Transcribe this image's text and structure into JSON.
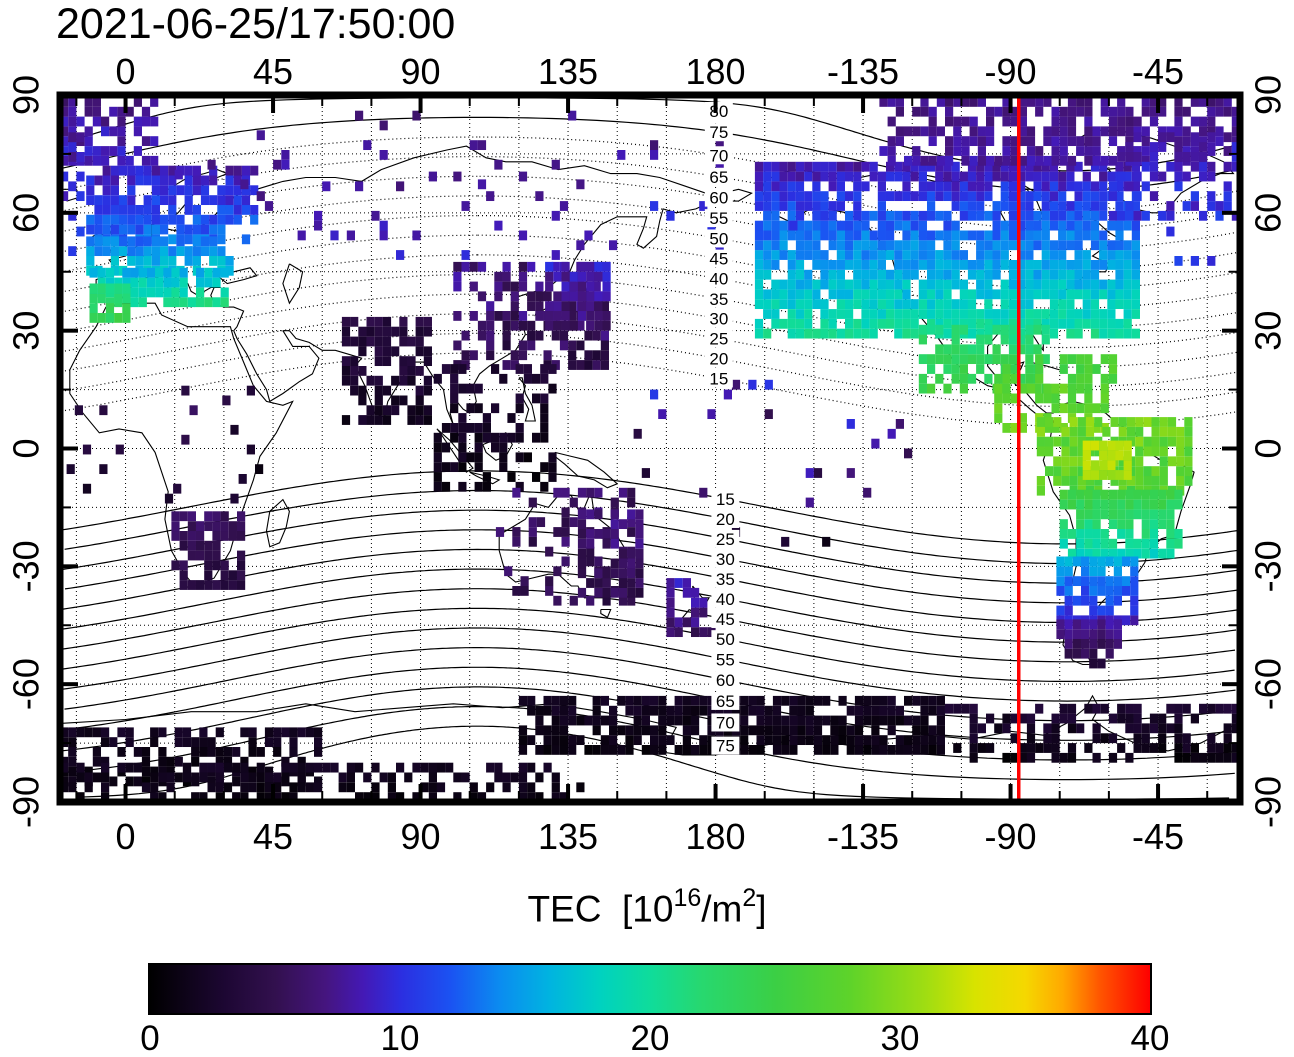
{
  "chart_data": {
    "type": "heatmap",
    "title": "2021-06-25/17:50:00",
    "background_color": "#ffffff",
    "lon_range": [
      -20,
      340
    ],
    "lat_range": [
      -90,
      90
    ],
    "grid_step_deg": 15,
    "pixel_size_deg": 2.5,
    "red_meridian_lon": -87.5,
    "red_meridian_color": "#ff0000",
    "x_axis": {
      "tick_labels": [
        "0",
        "45",
        "90",
        "135",
        "180",
        "-135",
        "-90",
        "-45"
      ],
      "tick_lons": [
        0,
        45,
        90,
        135,
        180,
        -135,
        -90,
        -45
      ]
    },
    "y_axis": {
      "tick_labels": [
        "90",
        "60",
        "30",
        "0",
        "-30",
        "-60",
        "-90"
      ],
      "tick_lats": [
        90,
        60,
        30,
        0,
        -30,
        -60,
        -90
      ]
    },
    "contours": {
      "label_meridian_lon": 181,
      "levels_north": [
        15,
        20,
        25,
        30,
        35,
        40,
        45,
        50,
        55,
        60,
        65,
        70,
        75,
        80
      ],
      "labels_north": [
        "15",
        "20",
        "25",
        "30",
        "35",
        "40",
        "45",
        "50",
        "55",
        "60",
        "65",
        "70",
        "75",
        "80"
      ],
      "levels_south": [
        -15,
        -20,
        -25,
        -30,
        -35,
        -40,
        -45,
        -50,
        -55,
        -60,
        -65,
        -70,
        -75,
        -80
      ],
      "labels_south": [
        "15",
        "20",
        "25",
        "30",
        "35",
        "40",
        "45",
        "50",
        "55",
        "60",
        "65",
        "70",
        "75",
        ""
      ]
    },
    "colorbar": {
      "title_parts": {
        "base": "TEC  [10",
        "sup1": "16",
        "mid": "/m",
        "sup2": "2",
        "end": "]"
      },
      "tick_labels": [
        "0",
        "10",
        "20",
        "30",
        "40"
      ],
      "tick_values": [
        0,
        10,
        20,
        30,
        40
      ],
      "range": [
        0,
        40
      ],
      "stops": [
        [
          0,
          "#000000"
        ],
        [
          3,
          "#1d0733"
        ],
        [
          5,
          "#32104e"
        ],
        [
          7,
          "#45157e"
        ],
        [
          8.5,
          "#4419b5"
        ],
        [
          10,
          "#2c2ee0"
        ],
        [
          12,
          "#1b52f2"
        ],
        [
          14,
          "#0b8cf0"
        ],
        [
          16,
          "#00b4e0"
        ],
        [
          18,
          "#00d2c0"
        ],
        [
          20,
          "#0fdc9b"
        ],
        [
          22,
          "#27d870"
        ],
        [
          25,
          "#3bcf45"
        ],
        [
          28,
          "#5ed32a"
        ],
        [
          31,
          "#9fdd12"
        ],
        [
          33,
          "#d8e300"
        ],
        [
          35,
          "#f5d800"
        ],
        [
          36.5,
          "#ffa800"
        ],
        [
          38,
          "#ff5500"
        ],
        [
          40,
          "#fe0000"
        ]
      ]
    },
    "tec_regions": [
      {
        "name": "arctic-atlantic",
        "lon": [
          -20,
          10
        ],
        "lat": [
          72,
          88
        ],
        "density": 0.7,
        "tec": [
          9,
          7
        ],
        "jitter": 1.5
      },
      {
        "name": "nw-europe",
        "lon": [
          -12,
          40
        ],
        "lat": [
          52,
          72
        ],
        "density": 0.8,
        "tec": [
          13,
          8
        ],
        "jitter": 1.5
      },
      {
        "name": "central-europe",
        "lon": [
          -12,
          32
        ],
        "lat": [
          44,
          52
        ],
        "density": 0.85,
        "tec": [
          17,
          13
        ],
        "jitter": 1.5
      },
      {
        "name": "south-europe",
        "lon": [
          -11,
          30
        ],
        "lat": [
          36,
          44
        ],
        "density": 0.85,
        "tec": [
          21,
          16
        ],
        "jitter": 1.5
      },
      {
        "name": "iberia-morocco",
        "lon": [
          -11,
          0
        ],
        "lat": [
          32,
          42
        ],
        "density": 0.9,
        "tec": [
          24,
          20
        ],
        "jitter": 1.5
      },
      {
        "name": "russia-scatter",
        "lon": [
          40,
          150
        ],
        "lat": [
          48,
          70
        ],
        "density": 0.09,
        "tec": [
          9,
          7
        ],
        "jitter": 1
      },
      {
        "name": "east-asia",
        "lon": [
          100,
          147
        ],
        "lat": [
          20,
          47
        ],
        "density": 0.5,
        "tec": [
          5,
          7
        ],
        "jitter": 2
      },
      {
        "name": "japan",
        "lon": [
          128,
          146
        ],
        "lat": [
          30,
          46
        ],
        "density": 0.9,
        "tec": [
          6,
          9
        ],
        "jitter": 1.5
      },
      {
        "name": "india",
        "lon": [
          66,
          92
        ],
        "lat": [
          6,
          32
        ],
        "density": 0.65,
        "tec": [
          2,
          4
        ],
        "jitter": 1
      },
      {
        "name": "se-asia",
        "lon": [
          94,
          130
        ],
        "lat": [
          -11,
          20
        ],
        "density": 0.45,
        "tec": [
          1,
          3
        ],
        "jitter": 1
      },
      {
        "name": "south-africa",
        "lon": [
          14,
          36
        ],
        "lat": [
          -36,
          -16
        ],
        "density": 0.7,
        "tec": [
          4,
          6
        ],
        "jitter": 1
      },
      {
        "name": "africa-eq-scatter",
        "lon": [
          -18,
          44
        ],
        "lat": [
          -14,
          16
        ],
        "density": 0.05,
        "tec": [
          2,
          5
        ],
        "jitter": 2
      },
      {
        "name": "australia",
        "lon": [
          113,
          155
        ],
        "lat": [
          -40,
          -11
        ],
        "density": 0.35,
        "tec": [
          5,
          6
        ],
        "jitter": 1.5
      },
      {
        "name": "australia-east",
        "lon": [
          138,
          156
        ],
        "lat": [
          -38,
          -16
        ],
        "density": 0.75,
        "tec": [
          5,
          7
        ],
        "jitter": 1.5
      },
      {
        "name": "new-zealand",
        "lon": [
          165,
          179
        ],
        "lat": [
          -48,
          -33
        ],
        "density": 0.5,
        "tec": [
          6,
          9
        ],
        "jitter": 1.5
      },
      {
        "name": "pacific-scatter",
        "lon": [
          150,
          240
        ],
        "lat": [
          -25,
          20
        ],
        "density": 0.035,
        "tec": [
          4,
          9
        ],
        "jitter": 3
      },
      {
        "name": "north-america",
        "lon": [
          -168,
          -52
        ],
        "lat": [
          28,
          72
        ],
        "density": 0.85,
        "tec": [
          20,
          8
        ],
        "jitter": 1.5
      },
      {
        "name": "arctic-canada",
        "lon": [
          -130,
          -20
        ],
        "lat": [
          72,
          88
        ],
        "density": 0.65,
        "tec": [
          8,
          7
        ],
        "jitter": 1
      },
      {
        "name": "mexico",
        "lon": [
          -118,
          -80
        ],
        "lat": [
          14,
          30
        ],
        "density": 0.7,
        "tec": [
          25,
          21
        ],
        "jitter": 1.5
      },
      {
        "name": "caribbean",
        "lon": [
          -95,
          -58
        ],
        "lat": [
          4,
          22
        ],
        "density": 0.55,
        "tec": [
          29,
          26
        ],
        "jitter": 1.5
      },
      {
        "name": "south-america-north",
        "lon": [
          -82,
          -36
        ],
        "lat": [
          -12,
          8
        ],
        "density": 0.8,
        "tec": [
          27,
          29
        ],
        "jitter": 2
      },
      {
        "name": "amazon-peak",
        "lon": [
          -68,
          -54
        ],
        "lat": [
          -8,
          2
        ],
        "density": 0.85,
        "tec": [
          31,
          33
        ],
        "jitter": 1
      },
      {
        "name": "south-america-mid",
        "lon": [
          -75,
          -38
        ],
        "lat": [
          -28,
          -12
        ],
        "density": 0.85,
        "tec": [
          19,
          25
        ],
        "jitter": 1.5
      },
      {
        "name": "south-america-south",
        "lon": [
          -76,
          -52
        ],
        "lat": [
          -45,
          -28
        ],
        "density": 0.85,
        "tec": [
          9,
          16
        ],
        "jitter": 1.5
      },
      {
        "name": "patagonia",
        "lon": [
          -76,
          -58
        ],
        "lat": [
          -56,
          -45
        ],
        "density": 0.8,
        "tec": [
          4,
          8
        ],
        "jitter": 1
      },
      {
        "name": "antarctica-pacific",
        "lon": [
          120,
          250
        ],
        "lat": [
          -78,
          -64
        ],
        "density": 0.8,
        "tec": [
          1,
          2
        ],
        "jitter": 0.7
      },
      {
        "name": "antarctica-american",
        "lon": [
          -110,
          -20
        ],
        "lat": [
          -80,
          -66
        ],
        "density": 0.55,
        "tec": [
          1,
          3
        ],
        "jitter": 1
      },
      {
        "name": "antarctica-atlantic",
        "lon": [
          -20,
          60
        ],
        "lat": [
          -86,
          -72
        ],
        "density": 0.55,
        "tec": [
          1,
          2
        ],
        "jitter": 0.7
      },
      {
        "name": "bottom-band",
        "lon": [
          -20,
          140
        ],
        "lat": [
          -90,
          -82
        ],
        "density": 0.5,
        "tec": [
          1,
          2
        ],
        "jitter": 0.7
      },
      {
        "name": "greenland-iceland",
        "lon": [
          -60,
          -14
        ],
        "lat": [
          58,
          80
        ],
        "density": 0.45,
        "tec": [
          10,
          8
        ],
        "jitter": 1.5
      },
      {
        "name": "aleutians-scatter",
        "lon": [
          160,
          205
        ],
        "lat": [
          48,
          62
        ],
        "density": 0.1,
        "tec": [
          8,
          10
        ],
        "jitter": 1
      },
      {
        "name": "arctic-scatter",
        "lon": [
          10,
          185
        ],
        "lat": [
          66,
          84
        ],
        "density": 0.05,
        "tec": [
          8,
          7
        ],
        "jitter": 1
      },
      {
        "name": "north-atlantic-scatter",
        "lon": [
          -45,
          -12
        ],
        "lat": [
          44,
          60
        ],
        "density": 0.08,
        "tec": [
          11,
          9
        ],
        "jitter": 1.5
      }
    ]
  }
}
